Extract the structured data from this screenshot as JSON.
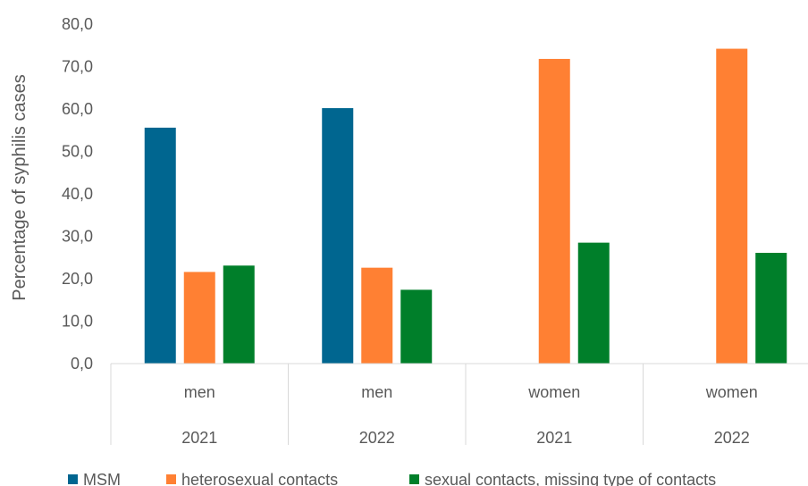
{
  "chart_data": {
    "type": "bar",
    "ylabel": "Percentage of syphilis cases",
    "xlabel": "",
    "ylim": [
      0,
      80
    ],
    "yticks": [
      "0,0",
      "10,0",
      "20,0",
      "30,0",
      "40,0",
      "50,0",
      "60,0",
      "70,0",
      "80,0"
    ],
    "grid": false,
    "legend_position": "bottom",
    "categories": [
      {
        "group": "men",
        "year": "2021"
      },
      {
        "group": "men",
        "year": "2022"
      },
      {
        "group": "women",
        "year": "2021"
      },
      {
        "group": "women",
        "year": "2022"
      }
    ],
    "series": [
      {
        "name": "MSM",
        "color": "#006690",
        "values": [
          55.6,
          60.2,
          null,
          null
        ]
      },
      {
        "name": "heterosexual contacts",
        "color": "#ff8033",
        "values": [
          21.6,
          22.6,
          71.8,
          74.2
        ]
      },
      {
        "name": "sexual contacts, missing type of contacts",
        "color": "#007f2a",
        "values": [
          23.1,
          17.4,
          28.5,
          26.1
        ]
      }
    ]
  }
}
